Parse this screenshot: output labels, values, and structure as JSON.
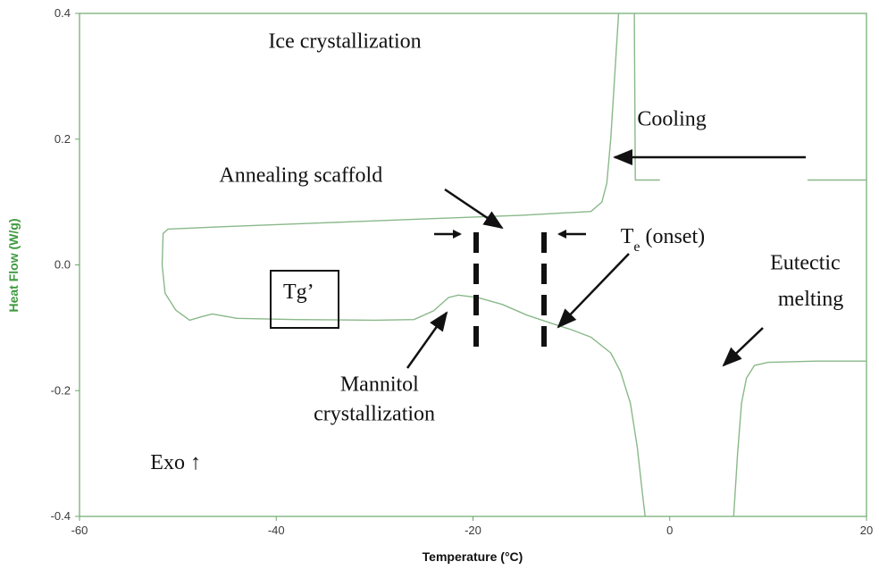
{
  "chart_data": {
    "type": "line",
    "title": "",
    "xlabel": "Temperature (°C)",
    "ylabel": "Heat Flow (W/g)",
    "xlim": [
      -60,
      20
    ],
    "ylim": [
      -0.4,
      0.4
    ],
    "x_ticks": [
      -60,
      -40,
      -20,
      0,
      20
    ],
    "x_tick_labels": [
      "-60",
      "-40",
      "-20",
      "0",
      "20"
    ],
    "y_ticks": [
      0.4,
      0.2,
      0.0,
      -0.2,
      -0.4
    ],
    "y_tick_labels": [
      "0.4",
      "0.2",
      "0.0",
      "-0.2",
      "-0.4"
    ],
    "grid": false,
    "legend": "none",
    "colors": {
      "curve": "#8ab88a",
      "frame": "#6aaa6a",
      "axis_title": "#3f9a3f",
      "annotation": "#111111"
    },
    "series": [
      {
        "points": [
          [
            14,
            0.135
          ],
          [
            20,
            0.135
          ]
        ]
      },
      {
        "points": [
          [
            -1.0,
            0.135
          ],
          [
            -3.5,
            0.135
          ],
          [
            -3.6,
            0.4
          ]
        ]
      },
      {
        "points": [
          [
            -5.2,
            0.4
          ],
          [
            -5.6,
            0.3
          ],
          [
            -6.0,
            0.2
          ],
          [
            -6.4,
            0.13
          ],
          [
            -6.9,
            0.1
          ],
          [
            -8.0,
            0.085
          ],
          [
            -15.0,
            0.079
          ],
          [
            -25.0,
            0.073
          ],
          [
            -35.0,
            0.067
          ],
          [
            -45.0,
            0.061
          ],
          [
            -51.0,
            0.057
          ],
          [
            -51.5,
            0.05
          ],
          [
            -51.6,
            0.0
          ],
          [
            -51.3,
            -0.045
          ],
          [
            -50.2,
            -0.072
          ],
          [
            -48.8,
            -0.088
          ],
          [
            -47.5,
            -0.082
          ],
          [
            -46.5,
            -0.078
          ],
          [
            -44.0,
            -0.085
          ],
          [
            -38.0,
            -0.087
          ],
          [
            -30.0,
            -0.088
          ],
          [
            -26.0,
            -0.087
          ],
          [
            -24.0,
            -0.073
          ],
          [
            -22.5,
            -0.052
          ],
          [
            -21.5,
            -0.048
          ],
          [
            -19.5,
            -0.052
          ],
          [
            -17.0,
            -0.063
          ],
          [
            -14.5,
            -0.08
          ],
          [
            -12.0,
            -0.093
          ],
          [
            -10.0,
            -0.103
          ],
          [
            -8.0,
            -0.115
          ],
          [
            -6.0,
            -0.14
          ],
          [
            -5.0,
            -0.17
          ],
          [
            -4.0,
            -0.22
          ],
          [
            -3.3,
            -0.29
          ],
          [
            -2.8,
            -0.36
          ],
          [
            -2.5,
            -0.4
          ]
        ]
      },
      {
        "points": [
          [
            6.5,
            -0.4
          ],
          [
            6.9,
            -0.3
          ],
          [
            7.3,
            -0.22
          ],
          [
            7.8,
            -0.18
          ],
          [
            8.6,
            -0.16
          ],
          [
            10.0,
            -0.155
          ],
          [
            15.0,
            -0.153
          ],
          [
            20.0,
            -0.153
          ]
        ]
      }
    ],
    "annotations": [
      {
        "text": "Ice crystallization",
        "x": -40.8,
        "y": 0.345
      },
      {
        "text": "Cooling",
        "x": -3.3,
        "y": 0.222
      },
      {
        "text": "Annealing scaffold",
        "x": -45.8,
        "y": 0.132
      },
      {
        "text": "Te (onset)",
        "x": -5.0,
        "y": 0.035
      },
      {
        "text": "Eutectic",
        "x": 10.2,
        "y": -0.007
      },
      {
        "text": "melting",
        "x": 11.0,
        "y": -0.065
      },
      {
        "text": "Tg’",
        "x": -39.3,
        "y": -0.053
      },
      {
        "text": "Mannitol",
        "x": -33.5,
        "y": -0.2
      },
      {
        "text": "crystallization",
        "x": -36.2,
        "y": -0.247
      },
      {
        "text": "Exo ↑",
        "x": -52.8,
        "y": -0.325
      }
    ],
    "dashed_markers": [
      -19.5,
      -12.5
    ]
  }
}
